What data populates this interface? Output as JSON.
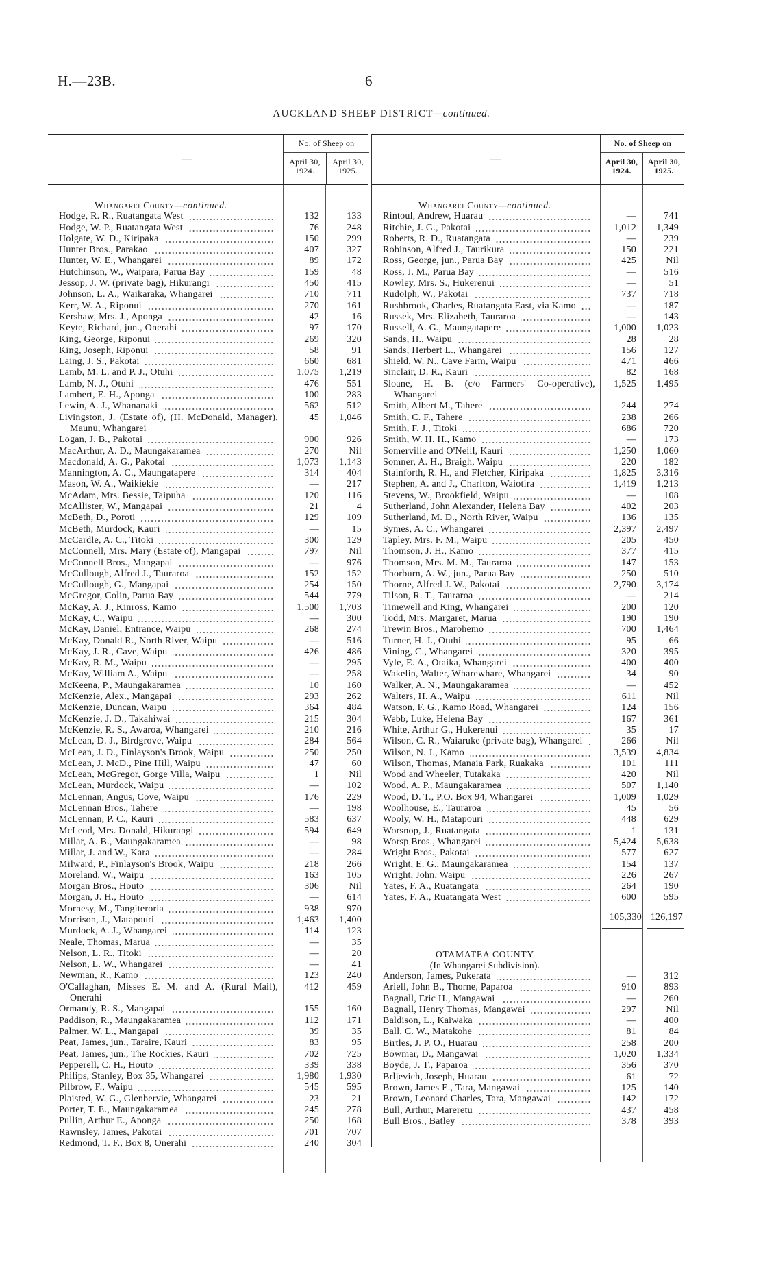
{
  "page": {
    "reference": "H.—23B.",
    "page_number": "6",
    "title": "AUCKLAND SHEEP DISTRICT",
    "title_suffix": "—continued."
  },
  "table_header": {
    "name_col": "—",
    "group": "No. of Sheep on",
    "col1": "April 30, 1924.",
    "col2": "April 30, 1925."
  },
  "left": {
    "section": "Whangarei County",
    "section_suffix": "—continued.",
    "rows": [
      [
        "Hodge, R. R., Ruatangata West",
        "132",
        "133"
      ],
      [
        "Hodge, W. P., Ruatangata West",
        "76",
        "248"
      ],
      [
        "Holgate, W. D., Kiripaka",
        "150",
        "299"
      ],
      [
        "Hunter Bros., Parakao",
        "407",
        "327"
      ],
      [
        "Hunter, W. E., Whangarei",
        "89",
        "172"
      ],
      [
        "Hutchinson, W., Waipara, Parua Bay",
        "159",
        "48"
      ],
      [
        "Jessop, J. W. (private bag), Hikurangi",
        "450",
        "415"
      ],
      [
        "Johnson, L. A., Waikaraka, Whangarei",
        "710",
        "711"
      ],
      [
        "Kerr, W. A., Riponui",
        "270",
        "161"
      ],
      [
        "Kershaw, Mrs. J., Aponga",
        "42",
        "16"
      ],
      [
        "Keyte, Richard, jun., Onerahi",
        "97",
        "170"
      ],
      [
        "King, George, Riponui",
        "269",
        "320"
      ],
      [
        "King, Joseph, Riponui",
        "58",
        "91"
      ],
      [
        "Laing, J. S., Pakotai",
        "660",
        "681"
      ],
      [
        "Lamb, M. L. and P. J., Otuhi",
        "1,075",
        "1,219"
      ],
      [
        "Lamb, N. J., Otuhi",
        "476",
        "551"
      ],
      [
        "Lambert, E. H., Aponga",
        "100",
        "283"
      ],
      [
        "Lewin, A. J., Whananaki",
        "562",
        "512"
      ],
      [
        "Livingston, J. (Estate of), (H. McDonald, Manager), Maunu, Whangarei",
        "45",
        "1,046"
      ],
      [
        "Logan, J. B., Pakotai",
        "900",
        "926"
      ],
      [
        "MacArthur, A. D., Maungakaramea",
        "270",
        "Nil"
      ],
      [
        "Macdonald, A. G., Pakotai",
        "1,073",
        "1,143"
      ],
      [
        "Mannington, A. C., Maungatapere",
        "314",
        "404"
      ],
      [
        "Mason, W. A., Waikiekie",
        "—",
        "217"
      ],
      [
        "McAdam, Mrs. Bessie, Taipuha",
        "120",
        "116"
      ],
      [
        "McAllister, W., Mangapai",
        "21",
        "4"
      ],
      [
        "McBeth, D., Poroti",
        "129",
        "109"
      ],
      [
        "McBeth, Murdock, Kauri",
        "—",
        "15"
      ],
      [
        "McCardle, A. C., Titoki",
        "300",
        "129"
      ],
      [
        "McConnell, Mrs. Mary (Estate of), Mangapai",
        "797",
        "Nil"
      ],
      [
        "McConnell Bros., Mangapai",
        "—",
        "976"
      ],
      [
        "McCullough, Alfred J., Tauraroa",
        "152",
        "152"
      ],
      [
        "McCullough, G., Mangapai",
        "254",
        "150"
      ],
      [
        "McGregor, Colin, Parua Bay",
        "544",
        "779"
      ],
      [
        "McKay, A. J., Kinross, Kamo",
        "1,500",
        "1,703"
      ],
      [
        "McKay, C., Waipu",
        "—",
        "300"
      ],
      [
        "McKay, Daniel, Entrance, Waipu",
        "268",
        "274"
      ],
      [
        "McKay, Donald R., North River, Waipu",
        "—",
        "516"
      ],
      [
        "McKay, J. R., Cave, Waipu",
        "426",
        "486"
      ],
      [
        "McKay, R. M., Waipu",
        "—",
        "295"
      ],
      [
        "McKay, William A., Waipu",
        "—",
        "258"
      ],
      [
        "McKeena, P., Maungakaramea",
        "10",
        "160"
      ],
      [
        "McKenzie, Alex., Mangapai",
        "293",
        "262"
      ],
      [
        "McKenzie, Duncan, Waipu",
        "364",
        "484"
      ],
      [
        "McKenzie, J. D., Takahiwai",
        "215",
        "304"
      ],
      [
        "McKenzie, R. S., Awaroa, Whangarei",
        "210",
        "216"
      ],
      [
        "McLean, D. J., Birdgrove, Waipu",
        "284",
        "564"
      ],
      [
        "McLean, J. D., Finlayson's Brook, Waipu",
        "250",
        "250"
      ],
      [
        "McLean, J. McD., Pine Hill, Waipu",
        "47",
        "60"
      ],
      [
        "McLean, McGregor, Gorge Villa, Waipu",
        "1",
        "Nil"
      ],
      [
        "McLean, Murdock, Waipu",
        "—",
        "102"
      ],
      [
        "McLennan, Angus, Cove, Waipu",
        "176",
        "229"
      ],
      [
        "McLennan Bros., Tahere",
        "—",
        "198"
      ],
      [
        "McLennan, P. C., Kauri",
        "583",
        "637"
      ],
      [
        "McLeod, Mrs. Donald, Hikurangi",
        "594",
        "649"
      ],
      [
        "Millar, A. B., Maungakaramea",
        "—",
        "98"
      ],
      [
        "Millar, J. and W., Kara",
        "—",
        "284"
      ],
      [
        "Milward, P., Finlayson's Brook, Waipu",
        "218",
        "266"
      ],
      [
        "Moreland, W., Waipu",
        "163",
        "105"
      ],
      [
        "Morgan Bros., Houto",
        "306",
        "Nil"
      ],
      [
        "Morgan, J. H., Houto",
        "—",
        "614"
      ],
      [
        "Mornesy, M., Tangiteroria",
        "938",
        "970"
      ],
      [
        "Morrison, J., Matapouri",
        "1,463",
        "1,400"
      ],
      [
        "Murdock, A. J., Whangarei",
        "114",
        "123"
      ],
      [
        "Neale, Thomas, Marua",
        "—",
        "35"
      ],
      [
        "Nelson, L. R., Titoki",
        "—",
        "20"
      ],
      [
        "Nelson, L. W., Whangarei",
        "—",
        "41"
      ],
      [
        "Newman, R., Kamo",
        "123",
        "240"
      ],
      [
        "O'Callaghan, Misses E. M. and A. (Rural Mail), Onerahi",
        "412",
        "459"
      ],
      [
        "Ormandy, R. S., Mangapai",
        "155",
        "160"
      ],
      [
        "Paddison, R., Maungakaramea",
        "112",
        "171"
      ],
      [
        "Palmer, W. L., Mangapai",
        "39",
        "35"
      ],
      [
        "Peat, James, jun., Taraire, Kauri",
        "83",
        "95"
      ],
      [
        "Peat, James, jun., The Rockies, Kauri",
        "702",
        "725"
      ],
      [
        "Pepperell, C. H., Houto",
        "339",
        "338"
      ],
      [
        "Philips, Stanley, Box 35, Whangarei",
        "1,980",
        "1,930"
      ],
      [
        "Pilbrow, F., Waipu",
        "545",
        "595"
      ],
      [
        "Plaisted, W. G., Glenbervie, Whangarei",
        "23",
        "21"
      ],
      [
        "Porter, T. E., Maungakaramea",
        "245",
        "278"
      ],
      [
        "Pullin, Arthur E., Aponga",
        "250",
        "168"
      ],
      [
        "Rawnsley, James, Pakotai",
        "701",
        "707"
      ],
      [
        "Redmond, T. F., Box 8, Onerahi",
        "240",
        "304"
      ]
    ]
  },
  "right": {
    "section": "Whangarei County",
    "section_suffix": "—continued.",
    "rows": [
      [
        "Rintoul, Andrew, Huarau",
        "—",
        "741"
      ],
      [
        "Ritchie, J. G., Pakotai",
        "1,012",
        "1,349"
      ],
      [
        "Roberts, R. D., Ruatangata",
        "—",
        "239"
      ],
      [
        "Robinson, Alfred J., Taurikura",
        "150",
        "221"
      ],
      [
        "Ross, George, jun., Parua Bay",
        "425",
        "Nil"
      ],
      [
        "Ross, J. M., Parua Bay",
        "—",
        "516"
      ],
      [
        "Rowley, Mrs. S., Hukerenui",
        "—",
        "51"
      ],
      [
        "Rudolph, W., Pakotai",
        "737",
        "718"
      ],
      [
        "Rushbrook, Charles, Ruatangata East, via Kamo",
        "—",
        "187"
      ],
      [
        "Russek, Mrs. Elizabeth, Tauraroa",
        "—",
        "143"
      ],
      [
        "Russell, A. G., Maungatapere",
        "1,000",
        "1,023"
      ],
      [
        "Sands, H., Waipu",
        "28",
        "28"
      ],
      [
        "Sands, Herbert L., Whangarei",
        "156",
        "127"
      ],
      [
        "Shield, W. N., Cave Farm, Waipu",
        "471",
        "466"
      ],
      [
        "Sinclair, D. R., Kauri",
        "82",
        "168"
      ],
      [
        "Sloane, H. B. (c/o Farmers' Co-operative), Whangarei",
        "1,525",
        "1,495"
      ],
      [
        "Smith, Albert M., Tahere",
        "244",
        "274"
      ],
      [
        "Smith, C. F., Tahere",
        "238",
        "266"
      ],
      [
        "Smith, F. J., Titoki",
        "686",
        "720"
      ],
      [
        "Smith, W. H. H., Kamo",
        "—",
        "173"
      ],
      [
        "Somerville and O'Neill, Kauri",
        "1,250",
        "1,060"
      ],
      [
        "Somner, A. H., Braigh, Waipu",
        "220",
        "182"
      ],
      [
        "Stainforth, R. H., and Fletcher, Kiripaka",
        "1,825",
        "3,316"
      ],
      [
        "Stephen, A. and J., Charlton, Waiotira",
        "1,419",
        "1,213"
      ],
      [
        "Stevens, W., Brookfield, Waipu",
        "—",
        "108"
      ],
      [
        "Sutherland, John Alexander, Helena Bay",
        "402",
        "203"
      ],
      [
        "Sutherland, M. D., North River, Waipu",
        "136",
        "135"
      ],
      [
        "Symes, A. C., Whangarei",
        "2,397",
        "2,497"
      ],
      [
        "Tapley, Mrs. F. M., Waipu",
        "205",
        "450"
      ],
      [
        "Thomson, J. H., Kamo",
        "377",
        "415"
      ],
      [
        "Thomson, Mrs. M. M., Tauraroa",
        "147",
        "153"
      ],
      [
        "Thorburn, A. W., jun., Parua Bay",
        "250",
        "510"
      ],
      [
        "Thorne, Alfred J. W., Pakotai",
        "2,790",
        "3,174"
      ],
      [
        "Tilson, R. T., Tauraroa",
        "—",
        "214"
      ],
      [
        "Timewell and King, Whangarei",
        "200",
        "120"
      ],
      [
        "Todd, Mrs. Margaret, Marua",
        "190",
        "190"
      ],
      [
        "Trewin Bros., Marohemo",
        "700",
        "1,464"
      ],
      [
        "Turner, H. J., Otuhi",
        "95",
        "66"
      ],
      [
        "Vining, C., Whangarei",
        "320",
        "395"
      ],
      [
        "Vyle, E. A., Otaika, Whangarei",
        "400",
        "400"
      ],
      [
        "Wakelin, Walter, Wharewhare, Whangarei",
        "34",
        "90"
      ],
      [
        "Walker, A. N., Maungakaramea",
        "—",
        "452"
      ],
      [
        "Walters, H. A., Waipu",
        "611",
        "Nil"
      ],
      [
        "Watson, F. G., Kamo Road, Whangarei",
        "124",
        "156"
      ],
      [
        "Webb, Luke, Helena Bay",
        "167",
        "361"
      ],
      [
        "White, Arthur G., Hukerenui",
        "35",
        "17"
      ],
      [
        "Wilson, C. R., Waiaruke (private bag), Whangarei",
        "266",
        "Nil"
      ],
      [
        "Wilson, N. J., Kamo",
        "3,539",
        "4,834"
      ],
      [
        "Wilson, Thomas, Manaia Park, Ruakaka",
        "101",
        "111"
      ],
      [
        "Wood and Wheeler, Tutakaka",
        "420",
        "Nil"
      ],
      [
        "Wood, A. P., Maungakaramea",
        "507",
        "1,140"
      ],
      [
        "Wood, D. T., P.O. Box 94, Whangarei",
        "1,009",
        "1,029"
      ],
      [
        "Woolhouse, E., Tauraroa",
        "45",
        "56"
      ],
      [
        "Wooly, W. H., Matapouri",
        "448",
        "629"
      ],
      [
        "Worsnop, J., Ruatangata",
        "1",
        "131"
      ],
      [
        "Worsp Bros., Whangarei",
        "5,424",
        "5,638"
      ],
      [
        "Wright Bros., Pakotai",
        "577",
        "627"
      ],
      [
        "Wright, E. G., Maungakaramea",
        "154",
        "137"
      ],
      [
        "Wright, John, Waipu",
        "226",
        "267"
      ],
      [
        "Yates, F. A., Ruatangata",
        "264",
        "190"
      ],
      [
        "Yates, F. A., Ruatangata West",
        "600",
        "595"
      ]
    ],
    "total_1924": "105,330",
    "total_1925": "126,197",
    "section2": "OTAMATEA COUNTY",
    "section2_sub": "(In Whangarei Subdivision).",
    "rows2": [
      [
        "Anderson, James, Pukerata",
        "—",
        "312"
      ],
      [
        "Ariell, John B., Thorne, Paparoa",
        "910",
        "893"
      ],
      [
        "Bagnall, Eric H., Mangawai",
        "—",
        "260"
      ],
      [
        "Bagnall, Henry Thomas, Mangawai",
        "297",
        "Nil"
      ],
      [
        "Baldison, L., Kaiwaka",
        "—",
        "400"
      ],
      [
        "Ball, C. W., Matakohe",
        "81",
        "84"
      ],
      [
        "Birtles, J. P. O., Huarau",
        "258",
        "200"
      ],
      [
        "Bowmar, D., Mangawai",
        "1,020",
        "1,334"
      ],
      [
        "Boyde, J. T., Paparoa",
        "356",
        "370"
      ],
      [
        "Brljevich, Joseph, Huarau",
        "61",
        "72"
      ],
      [
        "Brown, James E., Tara, Mangawai",
        "125",
        "140"
      ],
      [
        "Brown, Leonard Charles, Tara, Mangawai",
        "142",
        "172"
      ],
      [
        "Bull, Arthur, Mareretu",
        "437",
        "458"
      ],
      [
        "Bull Bros., Batley",
        "378",
        "393"
      ]
    ]
  }
}
